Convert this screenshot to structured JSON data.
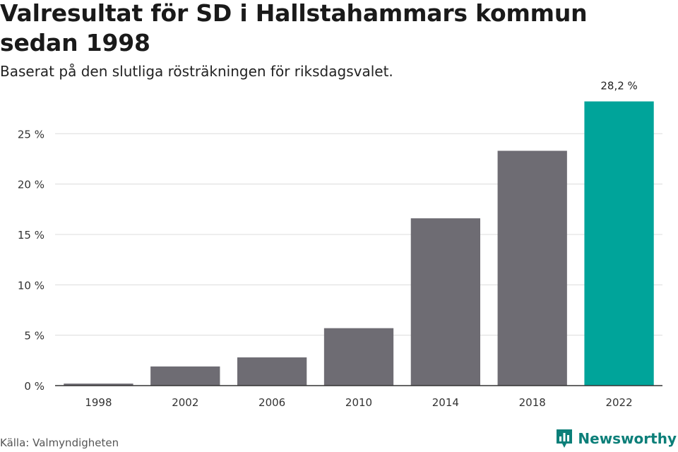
{
  "header": {
    "title": "Valresultat för SD i Hallstahammars kommun sedan 1998",
    "subtitle": "Baserat på den slutliga rösträkningen för riksdagsvalet."
  },
  "footer": {
    "source": "Källa: Valmyndigheten",
    "brand": "Newsworthy",
    "brand_color": "#0c7f79",
    "brand_icon": "bar-chart-logo-icon"
  },
  "chart_data": {
    "type": "bar",
    "categories": [
      "1998",
      "2002",
      "2006",
      "2010",
      "2014",
      "2018",
      "2022"
    ],
    "values": [
      0.2,
      1.9,
      2.8,
      5.7,
      16.6,
      23.3,
      28.2
    ],
    "data_labels": {
      "2022": "28,2 %"
    },
    "ytick_labels": [
      "0 %",
      "5 %",
      "10 %",
      "15 %",
      "20 %",
      "25 %"
    ],
    "yticks": [
      0,
      5,
      10,
      15,
      20,
      25
    ],
    "ylim": [
      0,
      28.2
    ],
    "grid": true,
    "colors": {
      "default": "#6e6c73",
      "highlight": "#00a49a"
    },
    "highlight_category": "2022"
  }
}
